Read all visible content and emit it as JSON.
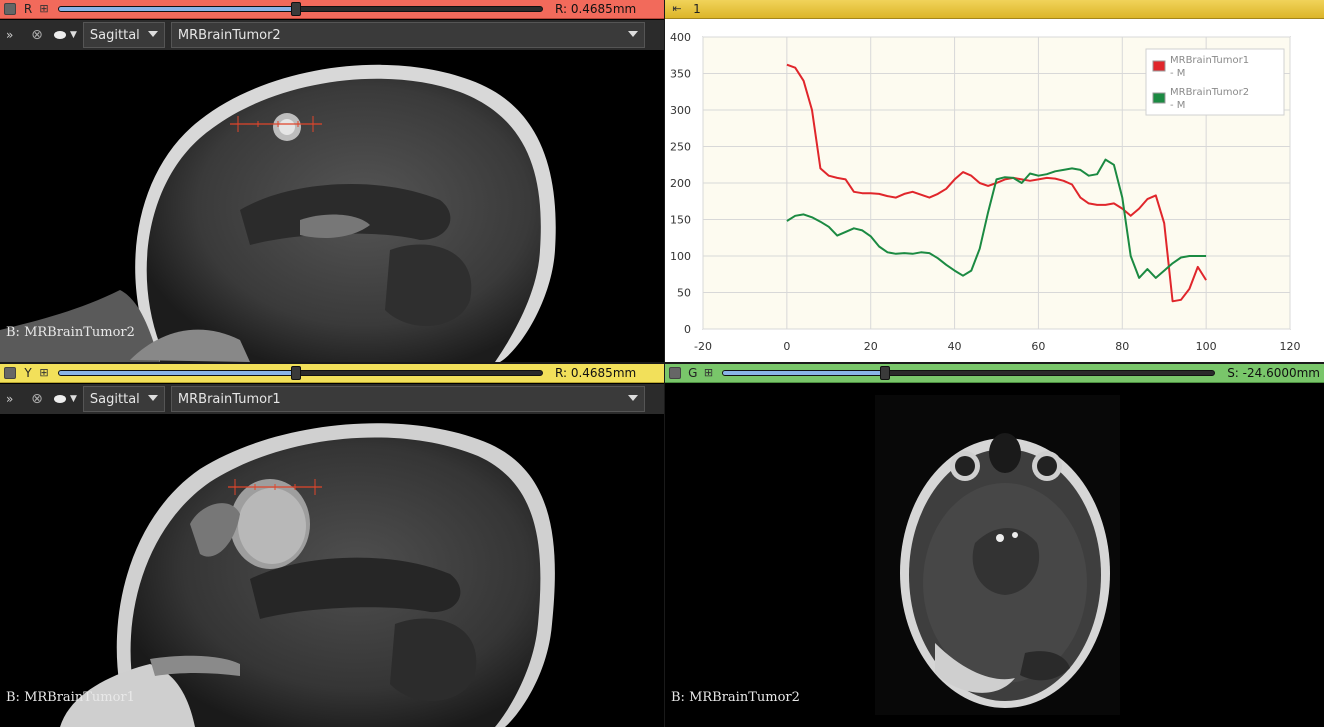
{
  "views": {
    "red": {
      "letter": "R",
      "offset": "R: 0.4685mm",
      "slider": 0.49,
      "orientation": "Sagittal",
      "volume": "MRBrainTumor2",
      "corner_label": "B: MRBrainTumor2"
    },
    "yellow": {
      "letter": "Y",
      "offset": "R: 0.4685mm",
      "slider": 0.49,
      "orientation": "Sagittal",
      "volume": "MRBrainTumor1",
      "corner_label": "B: MRBrainTumor1"
    },
    "green": {
      "letter": "G",
      "offset": "S: -24.6000mm",
      "slider": 0.33,
      "corner_label": "B: MRBrainTumor2"
    },
    "chart": {
      "layout_id": "1"
    }
  },
  "colors": {
    "red_bar": "#f26a5b",
    "yellow_bar": "#f2e05a",
    "green_bar": "#79c66a",
    "series1": "#e0262b",
    "series2": "#1b8a42"
  },
  "chart_data": {
    "type": "line",
    "xlim": [
      -20,
      120
    ],
    "ylim": [
      0,
      400
    ],
    "xticks": [
      -20,
      0,
      20,
      40,
      60,
      80,
      100,
      120
    ],
    "yticks": [
      0,
      50,
      100,
      150,
      200,
      250,
      300,
      350,
      400
    ],
    "grid": true,
    "legend_position": "top-right",
    "series": [
      {
        "name": "MRBrainTumor1 - M",
        "legend_line1": "MRBrainTumor1",
        "legend_line2": "- M",
        "color": "#e0262b",
        "x": [
          0,
          2,
          4,
          6,
          8,
          10,
          12,
          14,
          16,
          18,
          20,
          22,
          24,
          26,
          28,
          30,
          32,
          34,
          36,
          38,
          40,
          42,
          44,
          46,
          48,
          50,
          52,
          54,
          56,
          58,
          60,
          62,
          64,
          66,
          68,
          70,
          72,
          74,
          76,
          78,
          80,
          82,
          84,
          86,
          88,
          90,
          92,
          94,
          96,
          98,
          100
        ],
        "y": [
          362,
          358,
          340,
          300,
          220,
          210,
          207,
          205,
          188,
          186,
          186,
          185,
          182,
          180,
          185,
          188,
          184,
          180,
          185,
          192,
          205,
          215,
          210,
          200,
          196,
          200,
          205,
          207,
          205,
          203,
          205,
          207,
          206,
          203,
          198,
          180,
          172,
          170,
          170,
          172,
          165,
          155,
          165,
          178,
          183,
          145,
          38,
          40,
          55,
          85,
          67
        ]
      },
      {
        "name": "MRBrainTumor2 - M",
        "legend_line1": "MRBrainTumor2",
        "legend_line2": "- M",
        "color": "#1b8a42",
        "x": [
          0,
          2,
          4,
          6,
          8,
          10,
          12,
          14,
          16,
          18,
          20,
          22,
          24,
          26,
          28,
          30,
          32,
          34,
          36,
          38,
          40,
          42,
          44,
          46,
          48,
          50,
          52,
          54,
          56,
          58,
          60,
          62,
          64,
          66,
          68,
          70,
          72,
          74,
          76,
          78,
          80,
          82,
          84,
          86,
          88,
          90,
          92,
          94,
          96,
          98,
          100
        ],
        "y": [
          148,
          155,
          157,
          153,
          147,
          140,
          128,
          133,
          138,
          135,
          127,
          113,
          105,
          103,
          104,
          103,
          105,
          104,
          97,
          88,
          80,
          73,
          80,
          110,
          160,
          205,
          208,
          207,
          200,
          213,
          210,
          212,
          216,
          218,
          220,
          218,
          210,
          212,
          232,
          225,
          180,
          100,
          70,
          82,
          70,
          80,
          90,
          98,
          100,
          100,
          100
        ]
      }
    ]
  }
}
